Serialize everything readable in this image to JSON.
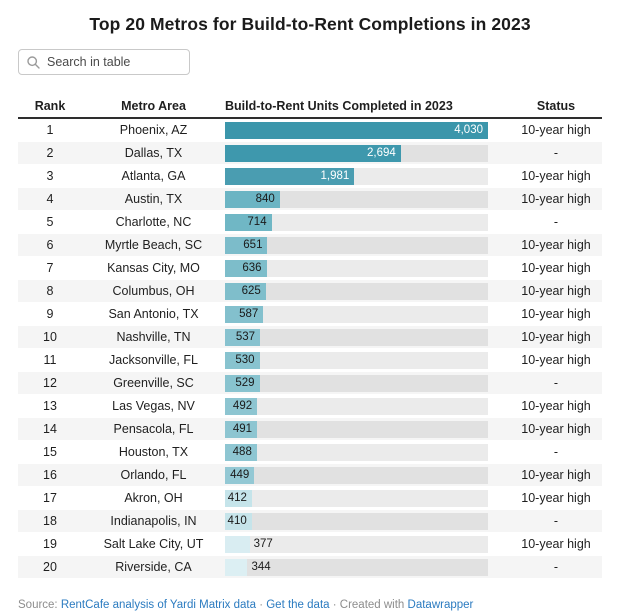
{
  "title": "Top 20 Metros for Build-to-Rent Completions in 2023",
  "search": {
    "placeholder": "Search in table",
    "icon": "magnifier-icon"
  },
  "colors": {
    "link_blue": "#2b7bc0",
    "header_border": "#2e2e2e",
    "stripe": "#f5f5f5",
    "track_gray": "rgba(0,0,0,0.08)"
  },
  "table": {
    "columns": [
      "Rank",
      "Metro Area",
      "Build-to-Rent Units Completed in 2023",
      "Status"
    ],
    "max_value": 4030,
    "rows": [
      {
        "rank": "1",
        "metro": "Phoenix, AZ",
        "value": 4030,
        "label": "4,030",
        "status": "10-year high",
        "bar_color": "#3b96ab",
        "label_pos": "inside",
        "label_tone": "light"
      },
      {
        "rank": "2",
        "metro": "Dallas, TX",
        "value": 2694,
        "label": "2,694",
        "status": "-",
        "bar_color": "#3e98ad",
        "label_pos": "inside",
        "label_tone": "light"
      },
      {
        "rank": "3",
        "metro": "Atlanta, GA",
        "value": 1981,
        "label": "1,981",
        "status": "10-year high",
        "bar_color": "#4a9db1",
        "label_pos": "inside",
        "label_tone": "light"
      },
      {
        "rank": "4",
        "metro": "Austin, TX",
        "value": 840,
        "label": "840",
        "status": "10-year high",
        "bar_color": "#6bb4c3",
        "label_pos": "inside",
        "label_tone": "dark"
      },
      {
        "rank": "5",
        "metro": "Charlotte, NC",
        "value": 714,
        "label": "714",
        "status": "-",
        "bar_color": "#70b7c5",
        "label_pos": "inside",
        "label_tone": "dark"
      },
      {
        "rank": "6",
        "metro": "Myrtle Beach, SC",
        "value": 651,
        "label": "651",
        "status": "10-year high",
        "bar_color": "#7cbcca",
        "label_pos": "inside",
        "label_tone": "dark"
      },
      {
        "rank": "7",
        "metro": "Kansas City, MO",
        "value": 636,
        "label": "636",
        "status": "10-year high",
        "bar_color": "#7dbdca",
        "label_pos": "inside",
        "label_tone": "dark"
      },
      {
        "rank": "8",
        "metro": "Columbus, OH",
        "value": 625,
        "label": "625",
        "status": "10-year high",
        "bar_color": "#7fbecb",
        "label_pos": "inside",
        "label_tone": "dark"
      },
      {
        "rank": "9",
        "metro": "San Antonio, TX",
        "value": 587,
        "label": "587",
        "status": "10-year high",
        "bar_color": "#83c0cd",
        "label_pos": "inside",
        "label_tone": "dark"
      },
      {
        "rank": "10",
        "metro": "Nashville, TN",
        "value": 537,
        "label": "537",
        "status": "10-year high",
        "bar_color": "#87c2cf",
        "label_pos": "inside",
        "label_tone": "dark"
      },
      {
        "rank": "11",
        "metro": "Jacksonville, FL",
        "value": 530,
        "label": "530",
        "status": "10-year high",
        "bar_color": "#88c3cf",
        "label_pos": "inside",
        "label_tone": "dark"
      },
      {
        "rank": "12",
        "metro": "Greenville, SC",
        "value": 529,
        "label": "529",
        "status": "-",
        "bar_color": "#88c3cf",
        "label_pos": "inside",
        "label_tone": "dark"
      },
      {
        "rank": "13",
        "metro": "Las Vegas, NV",
        "value": 492,
        "label": "492",
        "status": "10-year high",
        "bar_color": "#8dc5d1",
        "label_pos": "inside",
        "label_tone": "dark"
      },
      {
        "rank": "14",
        "metro": "Pensacola, FL",
        "value": 491,
        "label": "491",
        "status": "10-year high",
        "bar_color": "#8dc5d1",
        "label_pos": "inside",
        "label_tone": "dark"
      },
      {
        "rank": "15",
        "metro": "Houston, TX",
        "value": 488,
        "label": "488",
        "status": "-",
        "bar_color": "#8ec6d2",
        "label_pos": "inside",
        "label_tone": "dark"
      },
      {
        "rank": "16",
        "metro": "Orlando, FL",
        "value": 449,
        "label": "449",
        "status": "10-year high",
        "bar_color": "#93c8d4",
        "label_pos": "inside",
        "label_tone": "dark"
      },
      {
        "rank": "17",
        "metro": "Akron, OH",
        "value": 412,
        "label": "412",
        "status": "10-year high",
        "bar_color": "#c5e4ea",
        "label_pos": "inside",
        "label_tone": "dark"
      },
      {
        "rank": "18",
        "metro": "Indianapolis, IN",
        "value": 410,
        "label": "410",
        "status": "-",
        "bar_color": "#c6e4ea",
        "label_pos": "inside",
        "label_tone": "dark"
      },
      {
        "rank": "19",
        "metro": "Salt Lake City, UT",
        "value": 377,
        "label": "377",
        "status": "10-year high",
        "bar_color": "#d9edf2",
        "label_pos": "outside",
        "label_tone": "dark"
      },
      {
        "rank": "20",
        "metro": "Riverside, CA",
        "value": 344,
        "label": "344",
        "status": "-",
        "bar_color": "#dceff3",
        "label_pos": "outside",
        "label_tone": "dark"
      }
    ]
  },
  "footer": {
    "source_label": "Source: ",
    "source_link": "RentCafe analysis of Yardi Matrix data",
    "separator": " · ",
    "get_data_link": "Get the data",
    "created_with": " Created with ",
    "datawrapper_link": "Datawrapper"
  },
  "chart_data": {
    "type": "table",
    "title": "Top 20 Metros for Build-to-Rent Completions in 2023",
    "columns": [
      "Rank",
      "Metro Area",
      "Build-to-Rent Units Completed in 2023",
      "Status"
    ],
    "bar_column": "Build-to-Rent Units Completed in 2023",
    "bar_axis_range": [
      0,
      4030
    ],
    "legend_position": "none",
    "rows": [
      [
        1,
        "Phoenix, AZ",
        4030,
        "10-year high"
      ],
      [
        2,
        "Dallas, TX",
        2694,
        "-"
      ],
      [
        3,
        "Atlanta, GA",
        1981,
        "10-year high"
      ],
      [
        4,
        "Austin, TX",
        840,
        "10-year high"
      ],
      [
        5,
        "Charlotte, NC",
        714,
        "-"
      ],
      [
        6,
        "Myrtle Beach, SC",
        651,
        "10-year high"
      ],
      [
        7,
        "Kansas City, MO",
        636,
        "10-year high"
      ],
      [
        8,
        "Columbus, OH",
        625,
        "10-year high"
      ],
      [
        9,
        "San Antonio, TX",
        587,
        "10-year high"
      ],
      [
        10,
        "Nashville, TN",
        537,
        "10-year high"
      ],
      [
        11,
        "Jacksonville, FL",
        530,
        "10-year high"
      ],
      [
        12,
        "Greenville, SC",
        529,
        "-"
      ],
      [
        13,
        "Las Vegas, NV",
        492,
        "10-year high"
      ],
      [
        14,
        "Pensacola, FL",
        491,
        "10-year high"
      ],
      [
        15,
        "Houston, TX",
        488,
        "-"
      ],
      [
        16,
        "Orlando, FL",
        449,
        "10-year high"
      ],
      [
        17,
        "Akron, OH",
        412,
        "10-year high"
      ],
      [
        18,
        "Indianapolis, IN",
        410,
        "-"
      ],
      [
        19,
        "Salt Lake City, UT",
        377,
        "10-year high"
      ],
      [
        20,
        "Riverside, CA",
        344,
        "-"
      ]
    ]
  }
}
